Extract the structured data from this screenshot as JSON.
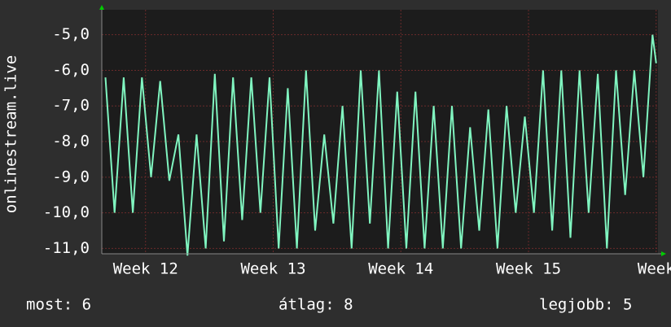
{
  "chart_data": {
    "type": "line",
    "y_label": "onlinestream.live",
    "x": [
      0.2,
      0.7,
      1.2,
      1.7,
      2.2,
      2.7,
      3.2,
      3.7,
      4.2,
      4.7,
      5.2,
      5.7,
      6.2,
      6.7,
      7.2,
      7.7,
      8.2,
      8.7,
      9.2,
      9.7,
      10.2,
      10.7,
      11.2,
      11.7,
      12.2,
      12.7,
      13.2,
      13.7,
      14.2,
      14.7,
      15.2,
      15.7,
      16.2,
      16.7,
      17.2,
      17.7,
      18.2,
      18.7,
      19.2,
      19.7,
      20.2,
      20.7,
      21.2,
      21.7,
      22.2,
      22.7,
      23.2,
      23.7,
      24.2,
      24.7,
      25.2,
      25.7,
      26.2,
      26.7,
      27.2,
      27.7,
      28.2,
      28.7,
      29.2,
      29.7,
      30.2,
      30.4
    ],
    "series": [
      {
        "name": "onlinestream.live",
        "color": "#80f5c0",
        "values": [
          -6.2,
          -10.0,
          -6.2,
          -10.0,
          -6.2,
          -9.0,
          -6.3,
          -9.1,
          -7.8,
          -11.2,
          -7.8,
          -11.0,
          -6.1,
          -10.8,
          -6.2,
          -10.2,
          -6.2,
          -10.0,
          -6.2,
          -11.0,
          -6.5,
          -11.0,
          -6.0,
          -10.5,
          -7.8,
          -10.3,
          -7.0,
          -11.0,
          -6.0,
          -10.3,
          -6.0,
          -11.0,
          -6.6,
          -11.0,
          -6.6,
          -11.0,
          -7.0,
          -11.0,
          -7.0,
          -11.0,
          -7.6,
          -10.5,
          -7.1,
          -11.0,
          -7.0,
          -10.0,
          -7.3,
          -10.0,
          -6.0,
          -10.5,
          -6.0,
          -10.7,
          -6.0,
          -10.0,
          -6.1,
          -11.0,
          -6.0,
          -9.5,
          -6.0,
          -9.0,
          -5.0,
          -5.8
        ]
      }
    ],
    "xlim": [
      0,
      30.5
    ],
    "xticks": [
      {
        "value": 2.4,
        "label": "Week 12"
      },
      {
        "value": 9.4,
        "label": "Week 13"
      },
      {
        "value": 16.4,
        "label": "Week 14"
      },
      {
        "value": 23.4,
        "label": "Week 15"
      },
      {
        "value": 30.4,
        "label": "Week"
      }
    ],
    "ylim": [
      -11.15,
      -4.3
    ],
    "yticks": [
      {
        "value": -5,
        "label": "-5,0"
      },
      {
        "value": -6,
        "label": "-6,0"
      },
      {
        "value": -7,
        "label": "-7,0"
      },
      {
        "value": -8,
        "label": "-8,0"
      },
      {
        "value": -9,
        "label": "-9,0"
      },
      {
        "value": -10,
        "label": "-10,0"
      },
      {
        "value": -11,
        "label": "-11,0"
      }
    ],
    "grid": true,
    "stats": [
      "most: 6",
      "átlag: 8",
      "legjobb: 5"
    ]
  }
}
